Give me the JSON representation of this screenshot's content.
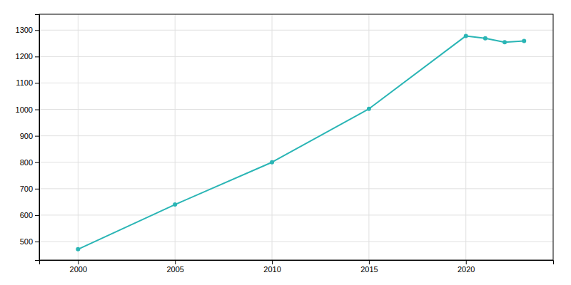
{
  "chart_data": {
    "type": "line",
    "x": [
      2000,
      2005,
      2010,
      2015,
      2020,
      2021,
      2022,
      2023
    ],
    "values": [
      471,
      640,
      800,
      1002,
      1278,
      1269,
      1254,
      1259
    ],
    "color": "#2ab5b5",
    "marker": "circle",
    "xlim": [
      1998,
      2024.5
    ],
    "ylim": [
      430,
      1360
    ],
    "xticks": [
      2000,
      2005,
      2010,
      2015,
      2020
    ],
    "yticks": [
      500,
      600,
      700,
      800,
      900,
      1000,
      1100,
      1200,
      1300
    ],
    "grid": true
  }
}
